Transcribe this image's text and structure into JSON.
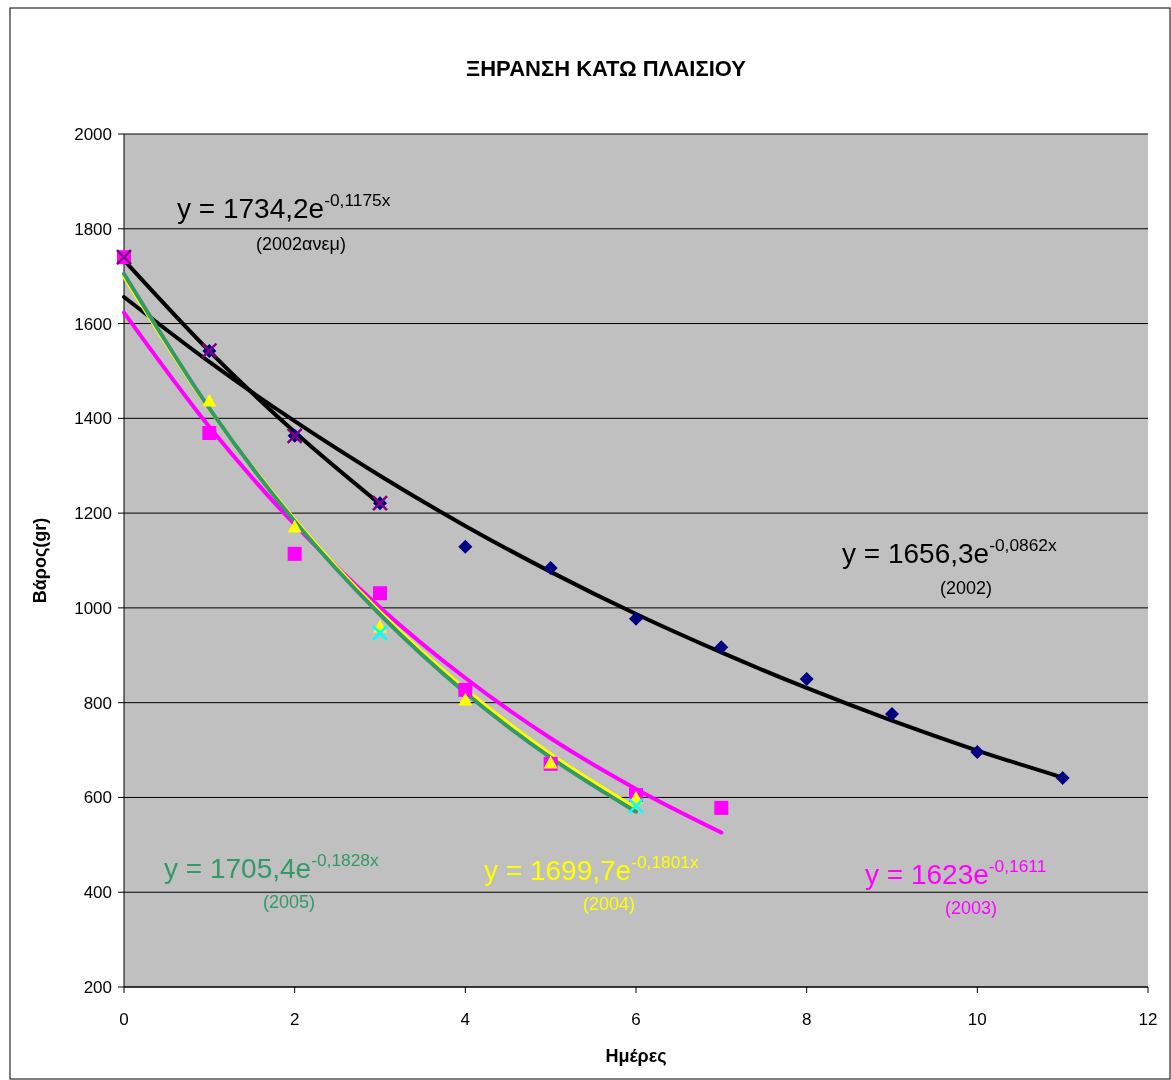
{
  "chart_data": {
    "type": "scatter",
    "title": "ΞΗΡΑΝΣΗ ΚΑΤΩ ΠΛΑΙΣΙΟΥ",
    "xlabel": "Ημέρες",
    "ylabel": "Βάρος(gr)",
    "xlim": [
      0,
      12
    ],
    "xticks": [
      0,
      2,
      4,
      6,
      8,
      10,
      12
    ],
    "ylim": [
      200,
      2000
    ],
    "yticks": [
      200,
      400,
      600,
      800,
      1000,
      1200,
      1400,
      1600,
      1800,
      2000
    ],
    "grid": "y",
    "series": [
      {
        "type": "line",
        "color": "#000000",
        "marker": "none",
        "x": [
          0,
          1,
          2,
          3,
          4,
          5,
          6,
          7,
          8,
          9,
          10,
          11
        ],
        "values": [
          1656,
          1519,
          1394,
          1279,
          1173,
          1076,
          987,
          906,
          831,
          762,
          699,
          642
        ]
      },
      {
        "type": "line",
        "color": "#000000",
        "marker": "none",
        "x": [
          0,
          1,
          2,
          3
        ],
        "values": [
          1734,
          1542,
          1371,
          1219
        ]
      },
      {
        "type": "line",
        "color": "#ff00ff",
        "marker": "none",
        "x": [
          0,
          1,
          2,
          3,
          4,
          5,
          6,
          7
        ],
        "values": [
          1623,
          1382,
          1176,
          1001,
          852,
          725,
          618,
          526
        ]
      },
      {
        "type": "line",
        "color": "#ffff00",
        "marker": "none",
        "x": [
          0,
          1,
          2,
          3,
          4,
          5,
          6
        ],
        "values": [
          1700,
          1420,
          1186,
          991,
          828,
          691,
          577
        ]
      },
      {
        "type": "line",
        "color": "#339966",
        "marker": "none",
        "x": [
          0,
          1,
          2,
          3,
          4,
          5,
          6
        ],
        "values": [
          1705,
          1421,
          1183,
          986,
          821,
          684,
          570
        ]
      },
      {
        "color": "#000080",
        "marker": "diamond",
        "x": [
          1,
          2,
          3,
          4,
          5,
          6,
          7,
          8,
          9,
          10,
          11
        ],
        "values": [
          1542,
          1363,
          1221,
          1129,
          1084,
          977,
          917,
          850,
          776,
          696,
          641
        ]
      },
      {
        "color": "#800080",
        "marker": "cross",
        "x": [
          0,
          1,
          2,
          3
        ],
        "values": [
          1740,
          1543,
          1363,
          1221
        ]
      },
      {
        "color": "#ff00ff",
        "marker": "square",
        "x": [
          0,
          1,
          2,
          3,
          4,
          5,
          6,
          7
        ],
        "values": [
          1740,
          1369,
          1114,
          1031,
          827,
          671,
          605,
          578
        ]
      },
      {
        "color": "#ffff00",
        "marker": "triangle",
        "x": [
          1,
          2,
          3,
          4,
          5,
          6
        ],
        "values": [
          1437,
          1171,
          960,
          806,
          673,
          599
        ]
      },
      {
        "color": "#00ffff",
        "marker": "cross",
        "x": [
          3,
          6
        ],
        "values": [
          947,
          582
        ]
      }
    ],
    "annotations": [
      "y = 1734,2e$^{-0,1175x}$",
      "(2002ανεμ)",
      "y = 1656,3e$^{-0,0862x}$",
      "(2002)",
      "y = 1705,4e$^{-0,1828x}$",
      "(2005)",
      "y = 1699,7e$^{-0,1801x}$",
      "(2004)",
      "y = 1623e$^{-0,1611}$",
      "(2003)"
    ]
  }
}
